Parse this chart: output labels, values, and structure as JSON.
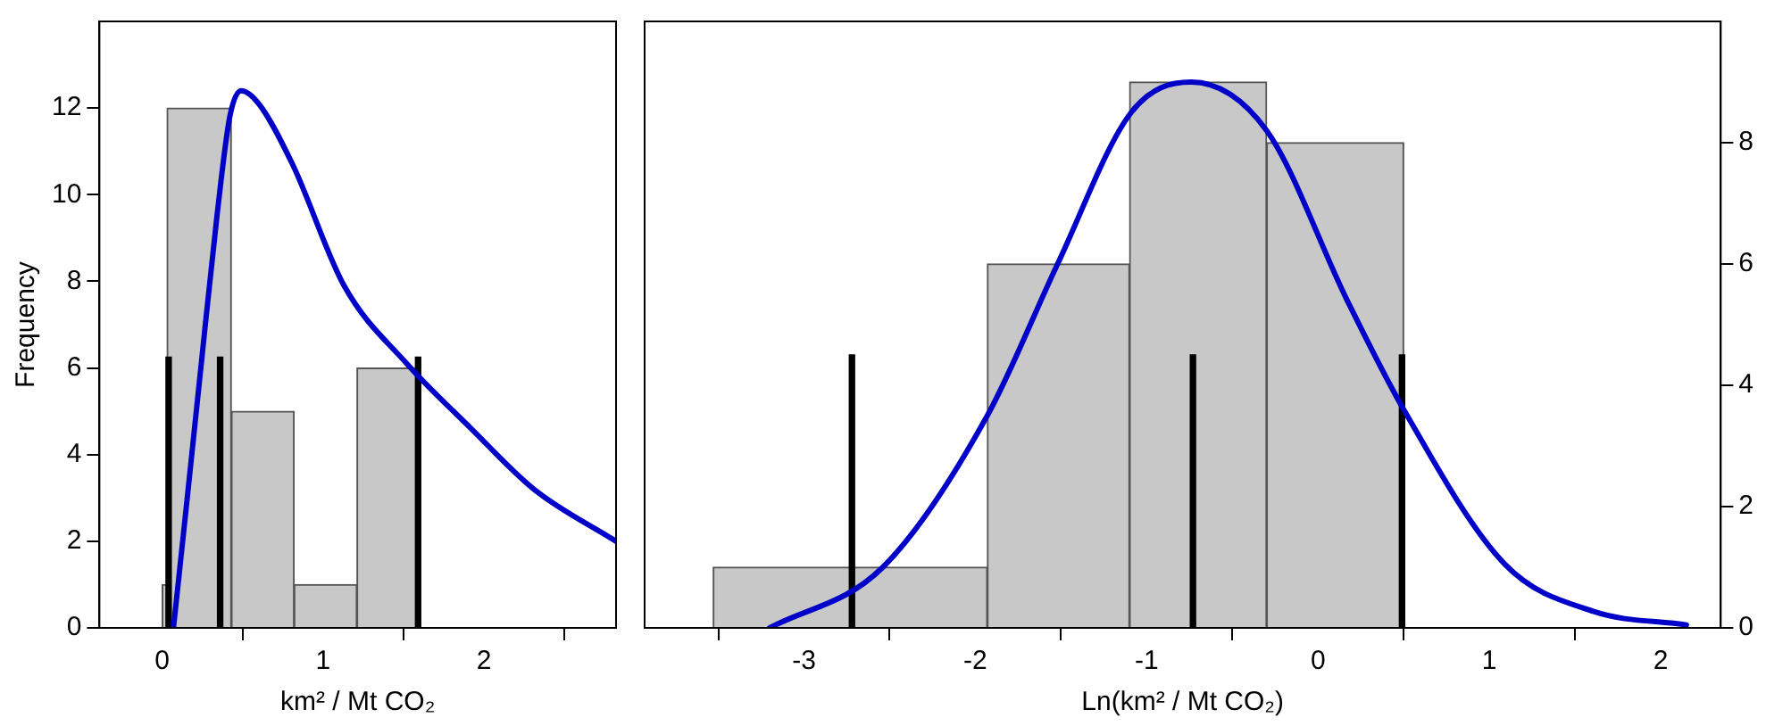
{
  "chart_data": [
    {
      "type": "histogram",
      "xlabel": "km² / Mt CO₂",
      "ylabel": "Frequency",
      "xlim": [
        -0.39,
        2.82
      ],
      "xticks": [
        0,
        1,
        2
      ],
      "ylim": [
        0,
        14
      ],
      "yticks": [
        0,
        2,
        4,
        6,
        8,
        10,
        12
      ],
      "grid": false,
      "legend": false,
      "series": [
        {
          "color": "#c8c8c8",
          "bins": [
            0,
            0.03,
            0.43,
            0.82,
            1.21,
            1.6
          ],
          "values": [
            1,
            12,
            5,
            1,
            6
          ]
        },
        {
          "type": "line",
          "color": "#0000c8",
          "x": [
            0.07,
            0.15,
            0.24,
            0.34,
            0.42,
            0.49,
            0.6,
            0.81,
            1.13,
            1.52,
            1.92,
            2.31,
            2.82
          ],
          "values": [
            0,
            2.8,
            6,
            9.5,
            11.8,
            12.4,
            12.1,
            10.7,
            7.9,
            6.1,
            4.6,
            3.2,
            2.0
          ]
        },
        {
          "type": "bar",
          "color": "#000000",
          "x": [
            0.04,
            0.36,
            1.59
          ],
          "values": [
            6.25,
            6.25,
            6.25
          ]
        }
      ]
    },
    {
      "type": "histogram",
      "xlabel": "Ln(km² / Mt CO₂)",
      "xlim": [
        -3.93,
        2.35
      ],
      "xticks": [
        -3,
        -2,
        -1,
        0,
        1,
        2
      ],
      "y2lim": [
        0,
        10
      ],
      "y2ticks": [
        0,
        2,
        4,
        6,
        8
      ],
      "grid": false,
      "legend": false,
      "series": [
        {
          "axis": "y2",
          "color": "#c8c8c8",
          "bins": [
            -3.53,
            -1.93,
            -1.1,
            -0.3,
            0.5
          ],
          "values": [
            1,
            6,
            9,
            8
          ]
        },
        {
          "type": "line",
          "axis": "y2",
          "color": "#0000c8",
          "x": [
            -3.2,
            -2.54,
            -1.93,
            -1.52,
            -1.09,
            -0.74,
            -0.3,
            0.17,
            0.5,
            1.09,
            1.61,
            2.15
          ],
          "values": [
            0,
            1.0,
            3.5,
            6.0,
            8.5,
            9.0,
            8.2,
            5.4,
            3.6,
            1.05,
            0.27,
            0.05
          ]
        },
        {
          "type": "bar",
          "axis": "y2",
          "color": "#000000",
          "x": [
            -2.72,
            -0.73,
            0.49
          ],
          "values": [
            4.5,
            4.5,
            4.5
          ]
        }
      ]
    }
  ]
}
